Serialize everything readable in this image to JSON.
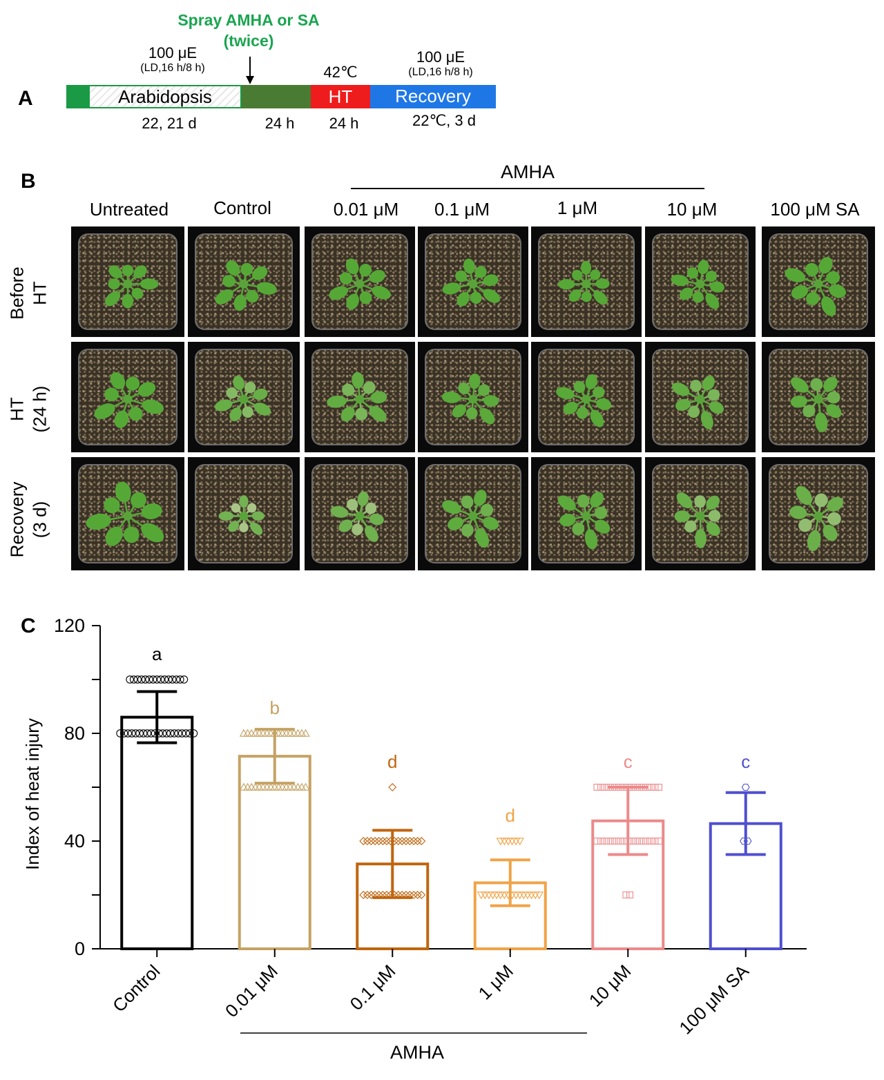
{
  "panel_a": {
    "letter": "A",
    "spray_line1": "Spray  AMHA or SA",
    "spray_line2": "(twice)",
    "light_left_main": "100 μE",
    "light_left_sub": "(LD,16 h/8 h)",
    "light_right_main": "100 μE",
    "light_right_sub": "(LD,16 h/8 h)",
    "temp_ht": "42℃",
    "bar_arabidopsis": "Arabidopsis",
    "bar_ht": "HT",
    "bar_recovery": "Recovery",
    "below_arabidopsis": "22, 21 d",
    "below_24h_1": "24 h",
    "below_24h_2": "24 h",
    "below_recovery": "22℃, 3 d",
    "colors": {
      "green": "#1a9a45",
      "olive": "#4a7b33",
      "red": "#ee1c1c",
      "blue": "#1f77e6",
      "spray_text": "#1aa550"
    }
  },
  "panel_b": {
    "letter": "B",
    "group_label": "AMHA",
    "columns": [
      "Untreated",
      "Control",
      "0.01 μM",
      "0.1 μM",
      "1 μM",
      "10 μM",
      "100 μM SA"
    ],
    "rows": [
      {
        "line1": "Before",
        "line2": "HT"
      },
      {
        "line1": "HT",
        "line2": "(24 h)"
      },
      {
        "line1": "Recovery",
        "line2": "(3 d)"
      }
    ]
  },
  "panel_c": {
    "letter": "C",
    "group_label": "AMHA"
  },
  "chart_data": {
    "type": "bar",
    "title": "",
    "xlabel": "",
    "ylabel": "Index of heat injury",
    "ylim": [
      0,
      120
    ],
    "yticks": [
      0,
      40,
      80,
      120
    ],
    "categories": [
      "Control",
      "0.01 μM",
      "0.1 μM",
      "1 μM",
      "10 μM",
      "100 μM SA"
    ],
    "values": [
      86,
      71.5,
      31.5,
      24.5,
      47.5,
      46.5
    ],
    "error": [
      9.5,
      10,
      12.5,
      8.5,
      12.5,
      11.5
    ],
    "significance_letters": [
      "a",
      "b",
      "d",
      "d",
      "c",
      "c"
    ],
    "colors": [
      "#000000",
      "#c5a263",
      "#c0650f",
      "#f0a347",
      "#ec8a8a",
      "#4f4fd0"
    ],
    "marker_shapes": [
      "circle",
      "triangle-up",
      "diamond",
      "triangle-down",
      "square",
      "hexagon"
    ],
    "points": [
      {
        "values": [
          100,
          80
        ],
        "counts": [
          15,
          20
        ]
      },
      {
        "values": [
          80,
          60
        ],
        "counts": [
          17,
          17
        ]
      },
      {
        "values": [
          60,
          40,
          20
        ],
        "counts": [
          1,
          16,
          16
        ]
      },
      {
        "values": [
          40,
          20
        ],
        "counts": [
          6,
          16
        ]
      },
      {
        "values": [
          60,
          40,
          20
        ],
        "counts": [
          17,
          17,
          2
        ]
      },
      {
        "values": [
          60,
          40
        ],
        "counts": [
          1,
          2
        ]
      }
    ],
    "grid": false,
    "legend": "none"
  }
}
